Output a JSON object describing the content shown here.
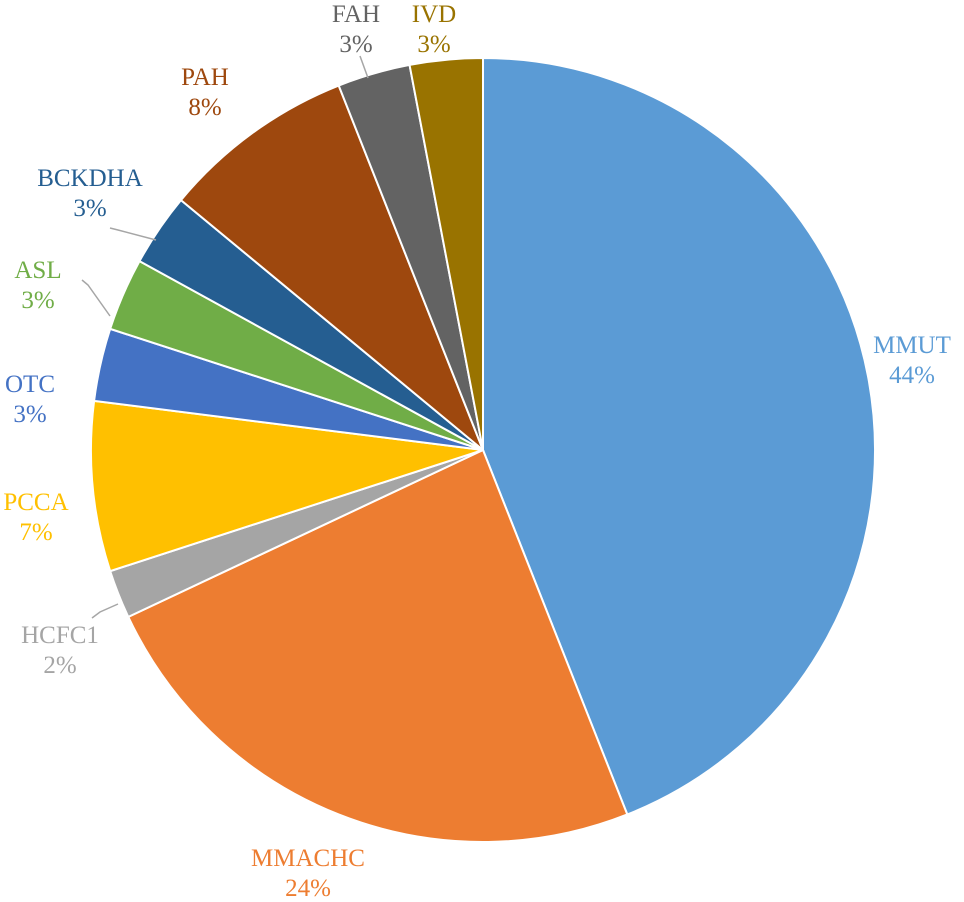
{
  "chart_data": {
    "type": "pie",
    "start_angle_deg": 0,
    "direction": "clockwise",
    "legend": "none",
    "slices": [
      {
        "label": "MMUT",
        "value": 44,
        "percent_label": "44%",
        "color": "#5B9BD5"
      },
      {
        "label": "MMACHC",
        "value": 24,
        "percent_label": "24%",
        "color": "#ED7D31"
      },
      {
        "label": "HCFC1",
        "value": 2,
        "percent_label": "2%",
        "color": "#A5A5A5"
      },
      {
        "label": "PCCA",
        "value": 7,
        "percent_label": "7%",
        "color": "#FFC000"
      },
      {
        "label": "OTC",
        "value": 3,
        "percent_label": "3%",
        "color": "#4472C4"
      },
      {
        "label": "ASL",
        "value": 3,
        "percent_label": "3%",
        "color": "#70AD47"
      },
      {
        "label": "BCKDHA",
        "value": 3,
        "percent_label": "3%",
        "color": "#255E91"
      },
      {
        "label": "PAH",
        "value": 8,
        "percent_label": "8%",
        "color": "#9E480E"
      },
      {
        "label": "FAH",
        "value": 3,
        "percent_label": "3%",
        "color": "#636363"
      },
      {
        "label": "IVD",
        "value": 3,
        "percent_label": "3%",
        "color": "#997300"
      }
    ]
  }
}
